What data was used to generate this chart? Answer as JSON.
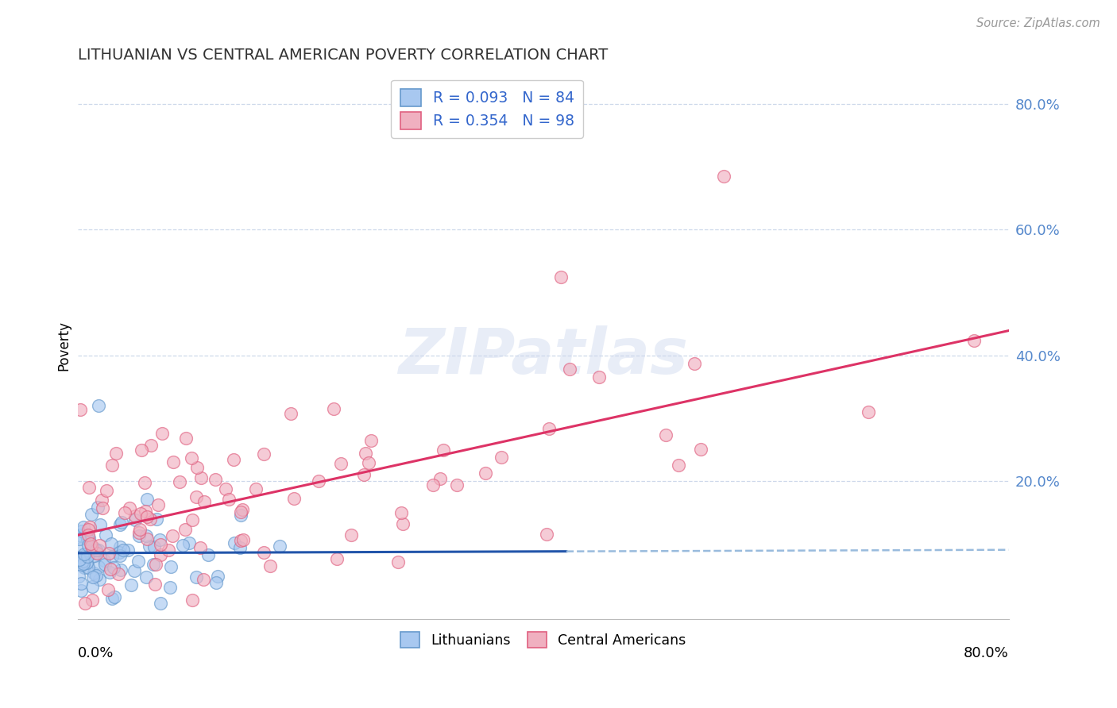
{
  "title": "LITHUANIAN VS CENTRAL AMERICAN POVERTY CORRELATION CHART",
  "source": "Source: ZipAtlas.com",
  "ylabel": "Poverty",
  "x_range": [
    0.0,
    0.8
  ],
  "y_range": [
    -0.02,
    0.85
  ],
  "watermark_text": "ZIPatlas",
  "blue_scatter_face": "#a8c8f0",
  "blue_scatter_edge": "#6699cc",
  "pink_scatter_face": "#f0b0c0",
  "pink_scatter_edge": "#e06080",
  "trend_blue_solid": "#2255aa",
  "trend_blue_dashed": "#99bbdd",
  "trend_pink_solid": "#dd3366",
  "grid_color": "#c8d4e8",
  "ytick_color": "#5588cc",
  "legend_text_color": "#3366cc",
  "title_color": "#333333",
  "source_color": "#999999",
  "lit_seed": 42,
  "ca_seed": 77
}
